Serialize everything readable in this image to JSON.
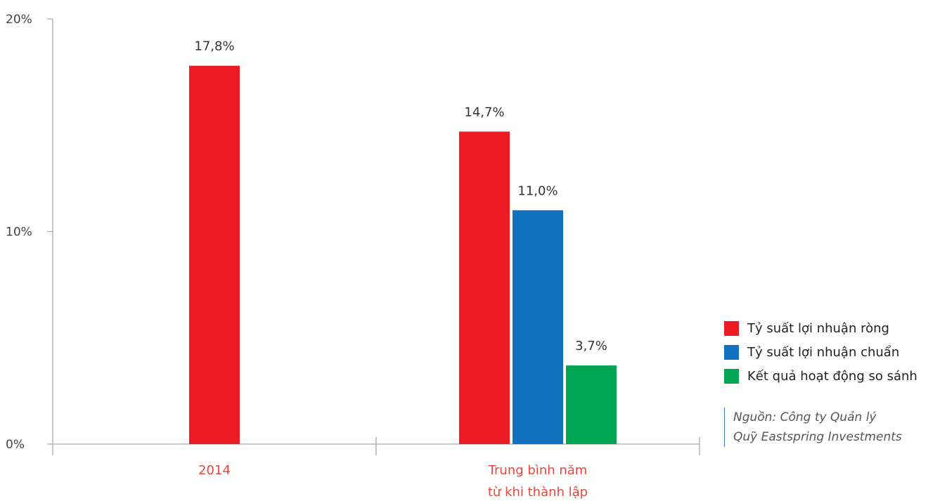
{
  "chart_data": {
    "type": "bar",
    "categories": [
      [
        "2014"
      ],
      [
        "Trung bình năm",
        "từ khi thành lập"
      ]
    ],
    "series": [
      {
        "name": "Tỷ suất lợi nhuận ròng",
        "color": "#ed1c24",
        "values": [
          17.8,
          14.7
        ],
        "labels": [
          "17,8%",
          "14,7%"
        ]
      },
      {
        "name": "Tỷ suất lợi nhuận chuẩn",
        "color": "#1372bf",
        "values": [
          null,
          11.0
        ],
        "labels": [
          "",
          "11,0%"
        ]
      },
      {
        "name": "Kết quả hoạt động so sánh",
        "color": "#00a651",
        "values": [
          null,
          3.7
        ],
        "labels": [
          "",
          "3,7%"
        ]
      }
    ],
    "yticks": [
      {
        "value": 0,
        "label": "0%"
      },
      {
        "value": 10,
        "label": "10%"
      },
      {
        "value": 20,
        "label": "20%"
      }
    ],
    "ylim": [
      0,
      20
    ],
    "legend_position": "right",
    "category_label_color": "#e8473c",
    "axis_color": "#aaaaaa"
  },
  "source": {
    "line1": "Nguồn: Công ty Quản lý",
    "line2": "Quỹ Eastspring Investments"
  }
}
